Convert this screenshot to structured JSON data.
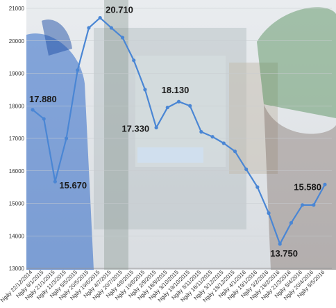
{
  "chart_data": {
    "type": "line",
    "title": "",
    "xlabel": "",
    "ylabel": "",
    "ylim": [
      13000,
      21000
    ],
    "yticks": [
      13000,
      14000,
      15000,
      16000,
      17000,
      18000,
      19000,
      20000,
      21000
    ],
    "grid": true,
    "categories": [
      "Ngày 22/12/2014",
      "Ngày 6/1/2015",
      "Ngày 21/1/2015",
      "Ngày 11/3/2015",
      "Ngày 5/5/2015",
      "Ngày 20/5/2015",
      "Ngày 19/6/2015",
      "Ngày 4/7/2015",
      "Ngày 20/7/2015",
      "Ngày 4/8/2015",
      "Ngày 19/8/2015",
      "Ngày 2/9/2015",
      "Ngày 18/9/2015",
      "Ngày 3/10/2015",
      "Ngày 19/10/2015",
      "Ngày 3/11/2015",
      "Ngày 18/11/2015",
      "Ngày 3/12/2015",
      "Ngày 18/12/2015",
      "Ngày 4/1/2016",
      "Ngày 19/1/2016",
      "Ngày 3/2/2016",
      "Ngày 18/2/2016",
      "Ngày 21/3/2016",
      "Ngày 5/4/2016",
      "Ngày 20/4/2016",
      "Ngày 5/5/2016"
    ],
    "series": [
      {
        "name": "",
        "color": "#4a86d4",
        "values": [
          17880,
          17600,
          15670,
          17000,
          19100,
          20400,
          20710,
          20400,
          20100,
          19400,
          18500,
          17330,
          17950,
          18130,
          18000,
          17200,
          17050,
          16850,
          16600,
          16050,
          15500,
          14700,
          13750,
          14400,
          14950,
          14950,
          15580
        ]
      }
    ],
    "data_labels": [
      {
        "index": 0,
        "text": "17.880"
      },
      {
        "index": 2,
        "text": "15.670"
      },
      {
        "index": 6,
        "text": "20.710"
      },
      {
        "index": 11,
        "text": "17.330"
      },
      {
        "index": 13,
        "text": "18.130"
      },
      {
        "index": 22,
        "text": "13.750"
      },
      {
        "index": 26,
        "text": "15.580"
      }
    ]
  }
}
